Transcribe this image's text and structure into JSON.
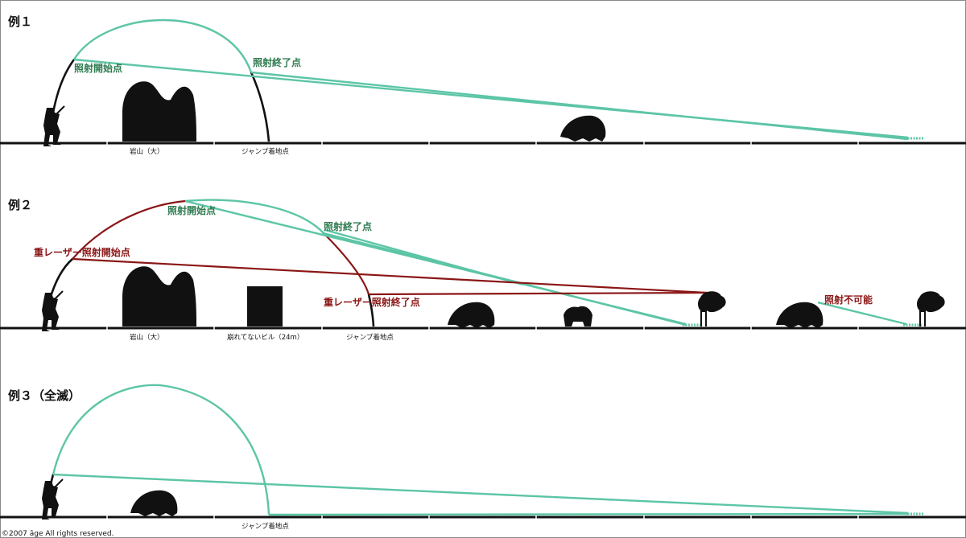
{
  "examples": [
    {
      "title": "例１",
      "labels": {
        "start": "照射開始点",
        "end": "照射終了点",
        "rock": "岩山（大）",
        "landing": "ジャンプ着地点"
      }
    },
    {
      "title": "例２",
      "labels": {
        "start": "照射開始点",
        "end": "照射終了点",
        "heavy_start": "重レーザー照射開始点",
        "heavy_end": "重レーザー照射終了点",
        "impossible": "照射不可能",
        "rock": "岩山（大）",
        "building": "崩れてないビル（24m）",
        "landing": "ジャンプ着地点"
      }
    },
    {
      "title": "例３（全滅）",
      "labels": {
        "landing": "ジャンプ着地点"
      }
    }
  ],
  "copyright": "©2007 āge All rights reserved.",
  "colors": {
    "laser": "#5cc5a6",
    "heavy_laser": "#8b1616",
    "label_green": "#2d7a4e",
    "ground": "#111111"
  }
}
